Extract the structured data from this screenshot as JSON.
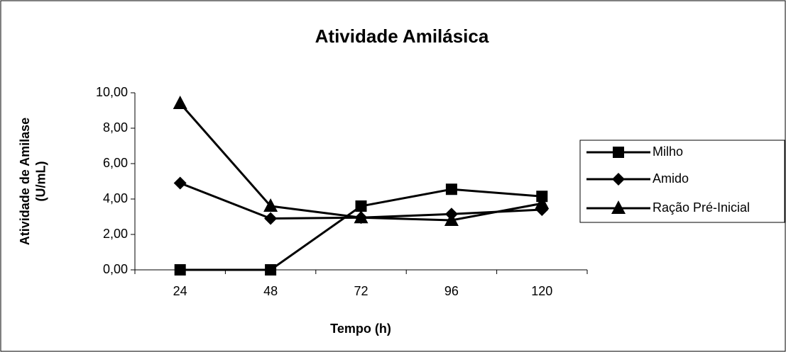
{
  "chart_data": {
    "type": "line",
    "title": "Atividade Amilásica",
    "x_label": "Tempo (h)",
    "y_label": "Atividade de Amilase (U/mL)",
    "categories": [
      "24",
      "48",
      "72",
      "96",
      "120"
    ],
    "series": [
      {
        "name": "Milho",
        "color": "#000000",
        "marker": "square",
        "values": [
          0,
          0,
          3.6,
          4.55,
          4.15
        ]
      },
      {
        "name": "Amido",
        "color": "#000000",
        "marker": "diamond",
        "values": [
          4.9,
          2.9,
          2.95,
          3.15,
          3.4
        ]
      },
      {
        "name": "Ração Pré-Inicial",
        "color": "#000000",
        "marker": "triangle",
        "values": [
          9.4,
          3.6,
          2.95,
          2.8,
          3.75
        ]
      }
    ],
    "ylim": [
      0,
      10
    ],
    "yticks": [
      {
        "value": 0,
        "label": "0,00"
      },
      {
        "value": 2,
        "label": "2,00"
      },
      {
        "value": 4,
        "label": "4,00"
      },
      {
        "value": 6,
        "label": "6,00"
      },
      {
        "value": 8,
        "label": "8,00"
      },
      {
        "value": 10,
        "label": "10,00"
      }
    ]
  }
}
